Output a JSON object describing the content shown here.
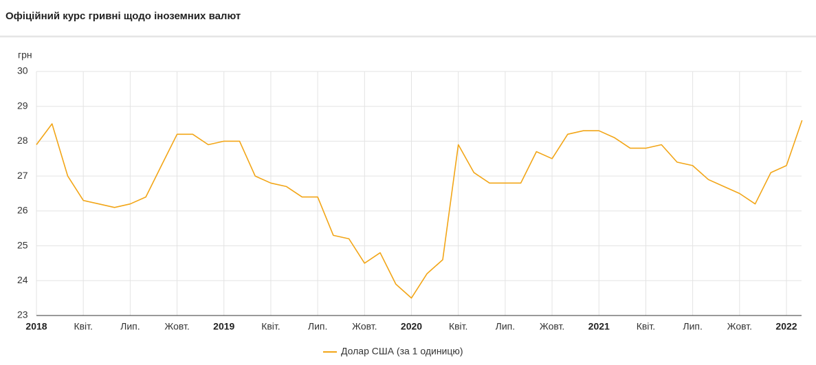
{
  "chart_data": {
    "type": "line",
    "title": "Офіційний курс гривні щодо іноземних валют",
    "y_label": "грн",
    "x": [
      "2018-01",
      "2018-02",
      "2018-03",
      "2018-04",
      "2018-05",
      "2018-06",
      "2018-07",
      "2018-08",
      "2018-09",
      "2018-10",
      "2018-11",
      "2018-12",
      "2019-01",
      "2019-02",
      "2019-03",
      "2019-04",
      "2019-05",
      "2019-06",
      "2019-07",
      "2019-08",
      "2019-09",
      "2019-10",
      "2019-11",
      "2019-12",
      "2020-01",
      "2020-02",
      "2020-03",
      "2020-04",
      "2020-05",
      "2020-06",
      "2020-07",
      "2020-08",
      "2020-09",
      "2020-10",
      "2020-11",
      "2020-12",
      "2021-01",
      "2021-02",
      "2021-03",
      "2021-04",
      "2021-05",
      "2021-06",
      "2021-07",
      "2021-08",
      "2021-09",
      "2021-10",
      "2021-11",
      "2021-12",
      "2022-01",
      "2022-02"
    ],
    "series": [
      {
        "name": "Долар США (за 1 одиницю)",
        "color": "#f2a516",
        "values": [
          27.9,
          28.5,
          27.0,
          26.3,
          26.2,
          26.1,
          26.2,
          26.4,
          27.3,
          28.2,
          28.2,
          27.9,
          28.0,
          28.0,
          27.0,
          26.8,
          26.7,
          26.4,
          26.4,
          25.3,
          25.2,
          24.5,
          24.8,
          23.9,
          23.5,
          24.2,
          24.6,
          27.9,
          27.1,
          26.8,
          26.8,
          26.8,
          27.7,
          27.5,
          28.2,
          28.3,
          28.3,
          28.1,
          27.8,
          27.8,
          27.9,
          27.4,
          27.3,
          26.9,
          26.7,
          26.5,
          26.2,
          27.1,
          27.3,
          28.6
        ]
      }
    ],
    "ylim": [
      23,
      30
    ],
    "yticks": [
      23,
      24,
      25,
      26,
      27,
      28,
      29,
      30
    ],
    "xticks": [
      {
        "value": "2018-01",
        "label": "2018"
      },
      {
        "value": "2018-04",
        "label": "Квіт."
      },
      {
        "value": "2018-07",
        "label": "Лип."
      },
      {
        "value": "2018-10",
        "label": "Жовт."
      },
      {
        "value": "2019-01",
        "label": "2019"
      },
      {
        "value": "2019-04",
        "label": "Квіт."
      },
      {
        "value": "2019-07",
        "label": "Лип."
      },
      {
        "value": "2019-10",
        "label": "Жовт."
      },
      {
        "value": "2020-01",
        "label": "2020"
      },
      {
        "value": "2020-04",
        "label": "Квіт."
      },
      {
        "value": "2020-07",
        "label": "Лип."
      },
      {
        "value": "2020-10",
        "label": "Жовт."
      },
      {
        "value": "2021-01",
        "label": "2021"
      },
      {
        "value": "2021-04",
        "label": "Квіт."
      },
      {
        "value": "2021-07",
        "label": "Лип."
      },
      {
        "value": "2021-10",
        "label": "Жовт."
      },
      {
        "value": "2022-01",
        "label": "2022"
      }
    ],
    "grid": true
  }
}
